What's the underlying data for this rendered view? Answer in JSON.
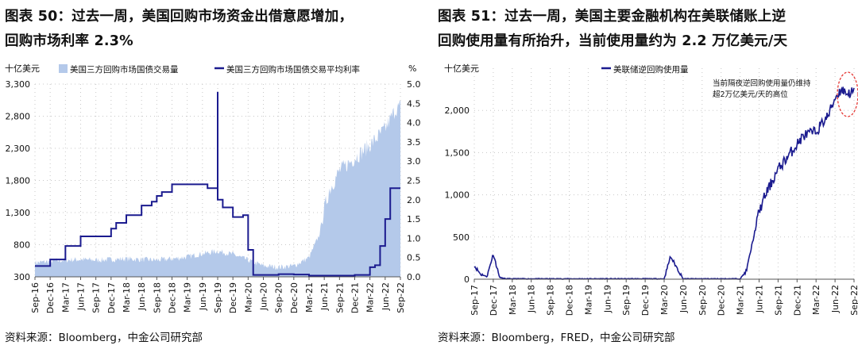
{
  "panels": [
    {
      "title_line1": "图表 50：过去一周，美国回购市场资金出借意愿增加，",
      "title_line2": "回购市场利率 2.3%",
      "source": "资料来源：Bloomberg，中金公司研究部"
    },
    {
      "title_line1": "图表 51：过去一周，美国主要金融机构在美联储账上逆",
      "title_line2": "回购使用量有所抬升，当前使用量约为 2.2 万亿美元/天",
      "source": "资料来源：Bloomberg，FRED，中金公司研究部"
    }
  ],
  "chart_data": [
    {
      "type": "area",
      "left_unit": "十亿美元",
      "right_unit": "%",
      "xlabel": "",
      "ylim_left": [
        300,
        3300
      ],
      "yticks_left": [
        300,
        800,
        1300,
        1800,
        2300,
        2800,
        3300
      ],
      "yticklabels_left": [
        "300",
        "800",
        "1,300",
        "1,800",
        "2,300",
        "2,800",
        "3,300"
      ],
      "ylim_right": [
        0,
        5
      ],
      "yticks_right": [
        0,
        0.5,
        1,
        1.5,
        2,
        2.5,
        3,
        3.5,
        4,
        4.5,
        5
      ],
      "yticklabels_right": [
        "0.0",
        "0.5",
        "1.0",
        "1.5",
        "2.0",
        "2.5",
        "3.0",
        "3.5",
        "4.0",
        "4.5",
        "5.0"
      ],
      "x_start": "2016-09",
      "x_end": "2022-09",
      "xtick_labels": [
        "Sep-16",
        "Dec-16",
        "Mar-17",
        "Jun-17",
        "Sep-17",
        "Dec-17",
        "Mar-18",
        "Jun-18",
        "Sep-18",
        "Dec-18",
        "Mar-19",
        "Jun-19",
        "Sep-19",
        "Dec-19",
        "Mar-20",
        "Jun-20",
        "Sep-20",
        "Dec-20",
        "Mar-21",
        "Jun-21",
        "Sep-21",
        "Dec-21",
        "Mar-22",
        "Jun-22",
        "Sep-22"
      ],
      "grid": "dotted",
      "legend_position": "top",
      "series": [
        {
          "name": "美国三方回购市场国债交易量",
          "axis": "left",
          "type": "area",
          "color": "#b4c9ea",
          "x": [
            "2016-09",
            "2016-12",
            "2017-03",
            "2017-06",
            "2017-09",
            "2017-12",
            "2018-03",
            "2018-06",
            "2018-09",
            "2018-12",
            "2019-03",
            "2019-06",
            "2019-09",
            "2019-12",
            "2020-03",
            "2020-06",
            "2020-09",
            "2020-12",
            "2021-03",
            "2021-05",
            "2021-06",
            "2021-07",
            "2021-09",
            "2021-12",
            "2022-03",
            "2022-06",
            "2022-08",
            "2022-09"
          ],
          "values": [
            520,
            540,
            560,
            570,
            560,
            570,
            580,
            570,
            560,
            580,
            610,
            660,
            700,
            650,
            560,
            470,
            450,
            470,
            600,
            950,
            1350,
            1650,
            1950,
            2150,
            2350,
            2600,
            2900,
            2950
          ]
        },
        {
          "name": "美国三方回购市场国债交易平均利率",
          "axis": "right",
          "type": "line",
          "color": "#1b1b8f",
          "x": [
            "2016-09",
            "2016-12",
            "2017-03",
            "2017-06",
            "2017-09",
            "2017-12",
            "2018-01",
            "2018-03",
            "2018-06",
            "2018-08",
            "2018-09",
            "2018-10",
            "2018-12",
            "2019-03",
            "2019-06",
            "2019-07",
            "2019-09",
            "2019-09",
            "2019-10",
            "2019-12",
            "2020-02",
            "2020-03",
            "2020-04",
            "2020-09",
            "2020-12",
            "2021-03",
            "2021-06",
            "2021-09",
            "2021-12",
            "2022-03",
            "2022-04",
            "2022-05",
            "2022-06",
            "2022-07",
            "2022-09"
          ],
          "values": [
            0.28,
            0.45,
            0.8,
            1.05,
            1.05,
            1.25,
            1.4,
            1.6,
            1.85,
            1.95,
            2.1,
            2.2,
            2.4,
            2.4,
            2.4,
            2.3,
            4.8,
            2.0,
            1.8,
            1.55,
            1.6,
            0.7,
            0.05,
            0.07,
            0.06,
            0.03,
            0.03,
            0.03,
            0.05,
            0.25,
            0.3,
            0.8,
            1.5,
            2.3,
            2.3
          ]
        }
      ]
    },
    {
      "type": "line",
      "left_unit": "十亿美元",
      "xlabel": "",
      "ylim": [
        0,
        2500
      ],
      "yticks": [
        0,
        500,
        1000,
        1500,
        2000
      ],
      "yticklabels": [
        "0",
        "500",
        "1,000",
        "1,500",
        "2,000"
      ],
      "x_start": "2017-09",
      "x_end": "2022-09",
      "xtick_labels": [
        "Sep-17",
        "Dec-17",
        "Mar-18",
        "Jun-18",
        "Sep-18",
        "Dec-18",
        "Mar-19",
        "Jun-19",
        "Sep-19",
        "Dec-19",
        "Mar-20",
        "Jun-20",
        "Sep-20",
        "Dec-20",
        "Mar-21",
        "Jun-21",
        "Sep-21",
        "Dec-21",
        "Mar-22",
        "Jun-22",
        "Sep-22"
      ],
      "grid": "dotted",
      "legend_position": "top",
      "annotation_line1": "当前隔夜逆回购使用量仍维持",
      "annotation_line2": "超2万亿美元/天的高位",
      "series": [
        {
          "name": "美联储逆回购使用量",
          "color": "#1b1b8f",
          "x": [
            "2017-09",
            "2017-10",
            "2017-11",
            "2017-12",
            "2018-01",
            "2018-02",
            "2018-06",
            "2018-12",
            "2019-06",
            "2019-12",
            "2020-03",
            "2020-04",
            "2020-06",
            "2020-12",
            "2021-03",
            "2021-04",
            "2021-05",
            "2021-06",
            "2021-07",
            "2021-09",
            "2021-10",
            "2021-12",
            "2022-01",
            "2022-03",
            "2022-05",
            "2022-06",
            "2022-07",
            "2022-08",
            "2022-09"
          ],
          "values": [
            160,
            60,
            30,
            300,
            20,
            5,
            5,
            5,
            5,
            5,
            5,
            270,
            5,
            5,
            5,
            100,
            450,
            800,
            1000,
            1300,
            1400,
            1600,
            1700,
            1750,
            1950,
            2150,
            2250,
            2200,
            2220
          ]
        }
      ]
    }
  ]
}
